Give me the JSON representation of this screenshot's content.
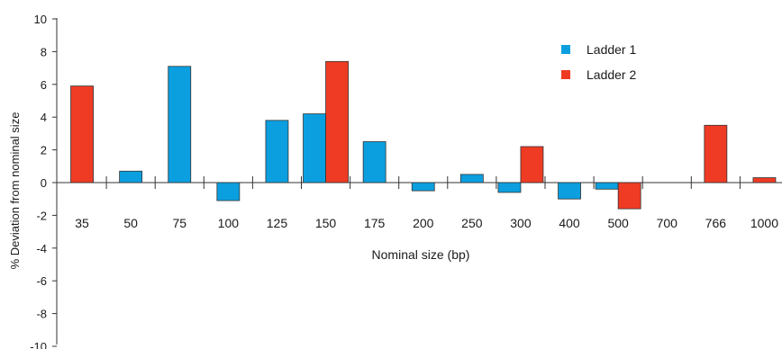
{
  "chart_data": {
    "type": "bar",
    "title": "",
    "xlabel": "Nominal size (bp)",
    "ylabel": "% Deviation from nominal size",
    "ylim": [
      -10,
      10
    ],
    "yticks": [
      10,
      8,
      6,
      4,
      2,
      0,
      -2,
      -4,
      -6,
      -8,
      -10
    ],
    "categories": [
      "35",
      "50",
      "75",
      "100",
      "125",
      "150",
      "175",
      "200",
      "250",
      "300",
      "400",
      "500",
      "700",
      "766",
      "1000"
    ],
    "series": [
      {
        "name": "Ladder 1",
        "color": "#0b9fe0",
        "values": [
          null,
          0.7,
          7.1,
          -1.1,
          3.8,
          4.2,
          2.5,
          -0.5,
          0.5,
          -0.6,
          -1.0,
          -0.4,
          null,
          null,
          null
        ]
      },
      {
        "name": "Ladder 2",
        "color": "#ef3b24",
        "values": [
          5.9,
          null,
          null,
          null,
          null,
          7.4,
          null,
          null,
          null,
          2.2,
          null,
          -1.6,
          null,
          3.5,
          0.3
        ]
      }
    ],
    "legend": "top-right",
    "grid": false
  }
}
